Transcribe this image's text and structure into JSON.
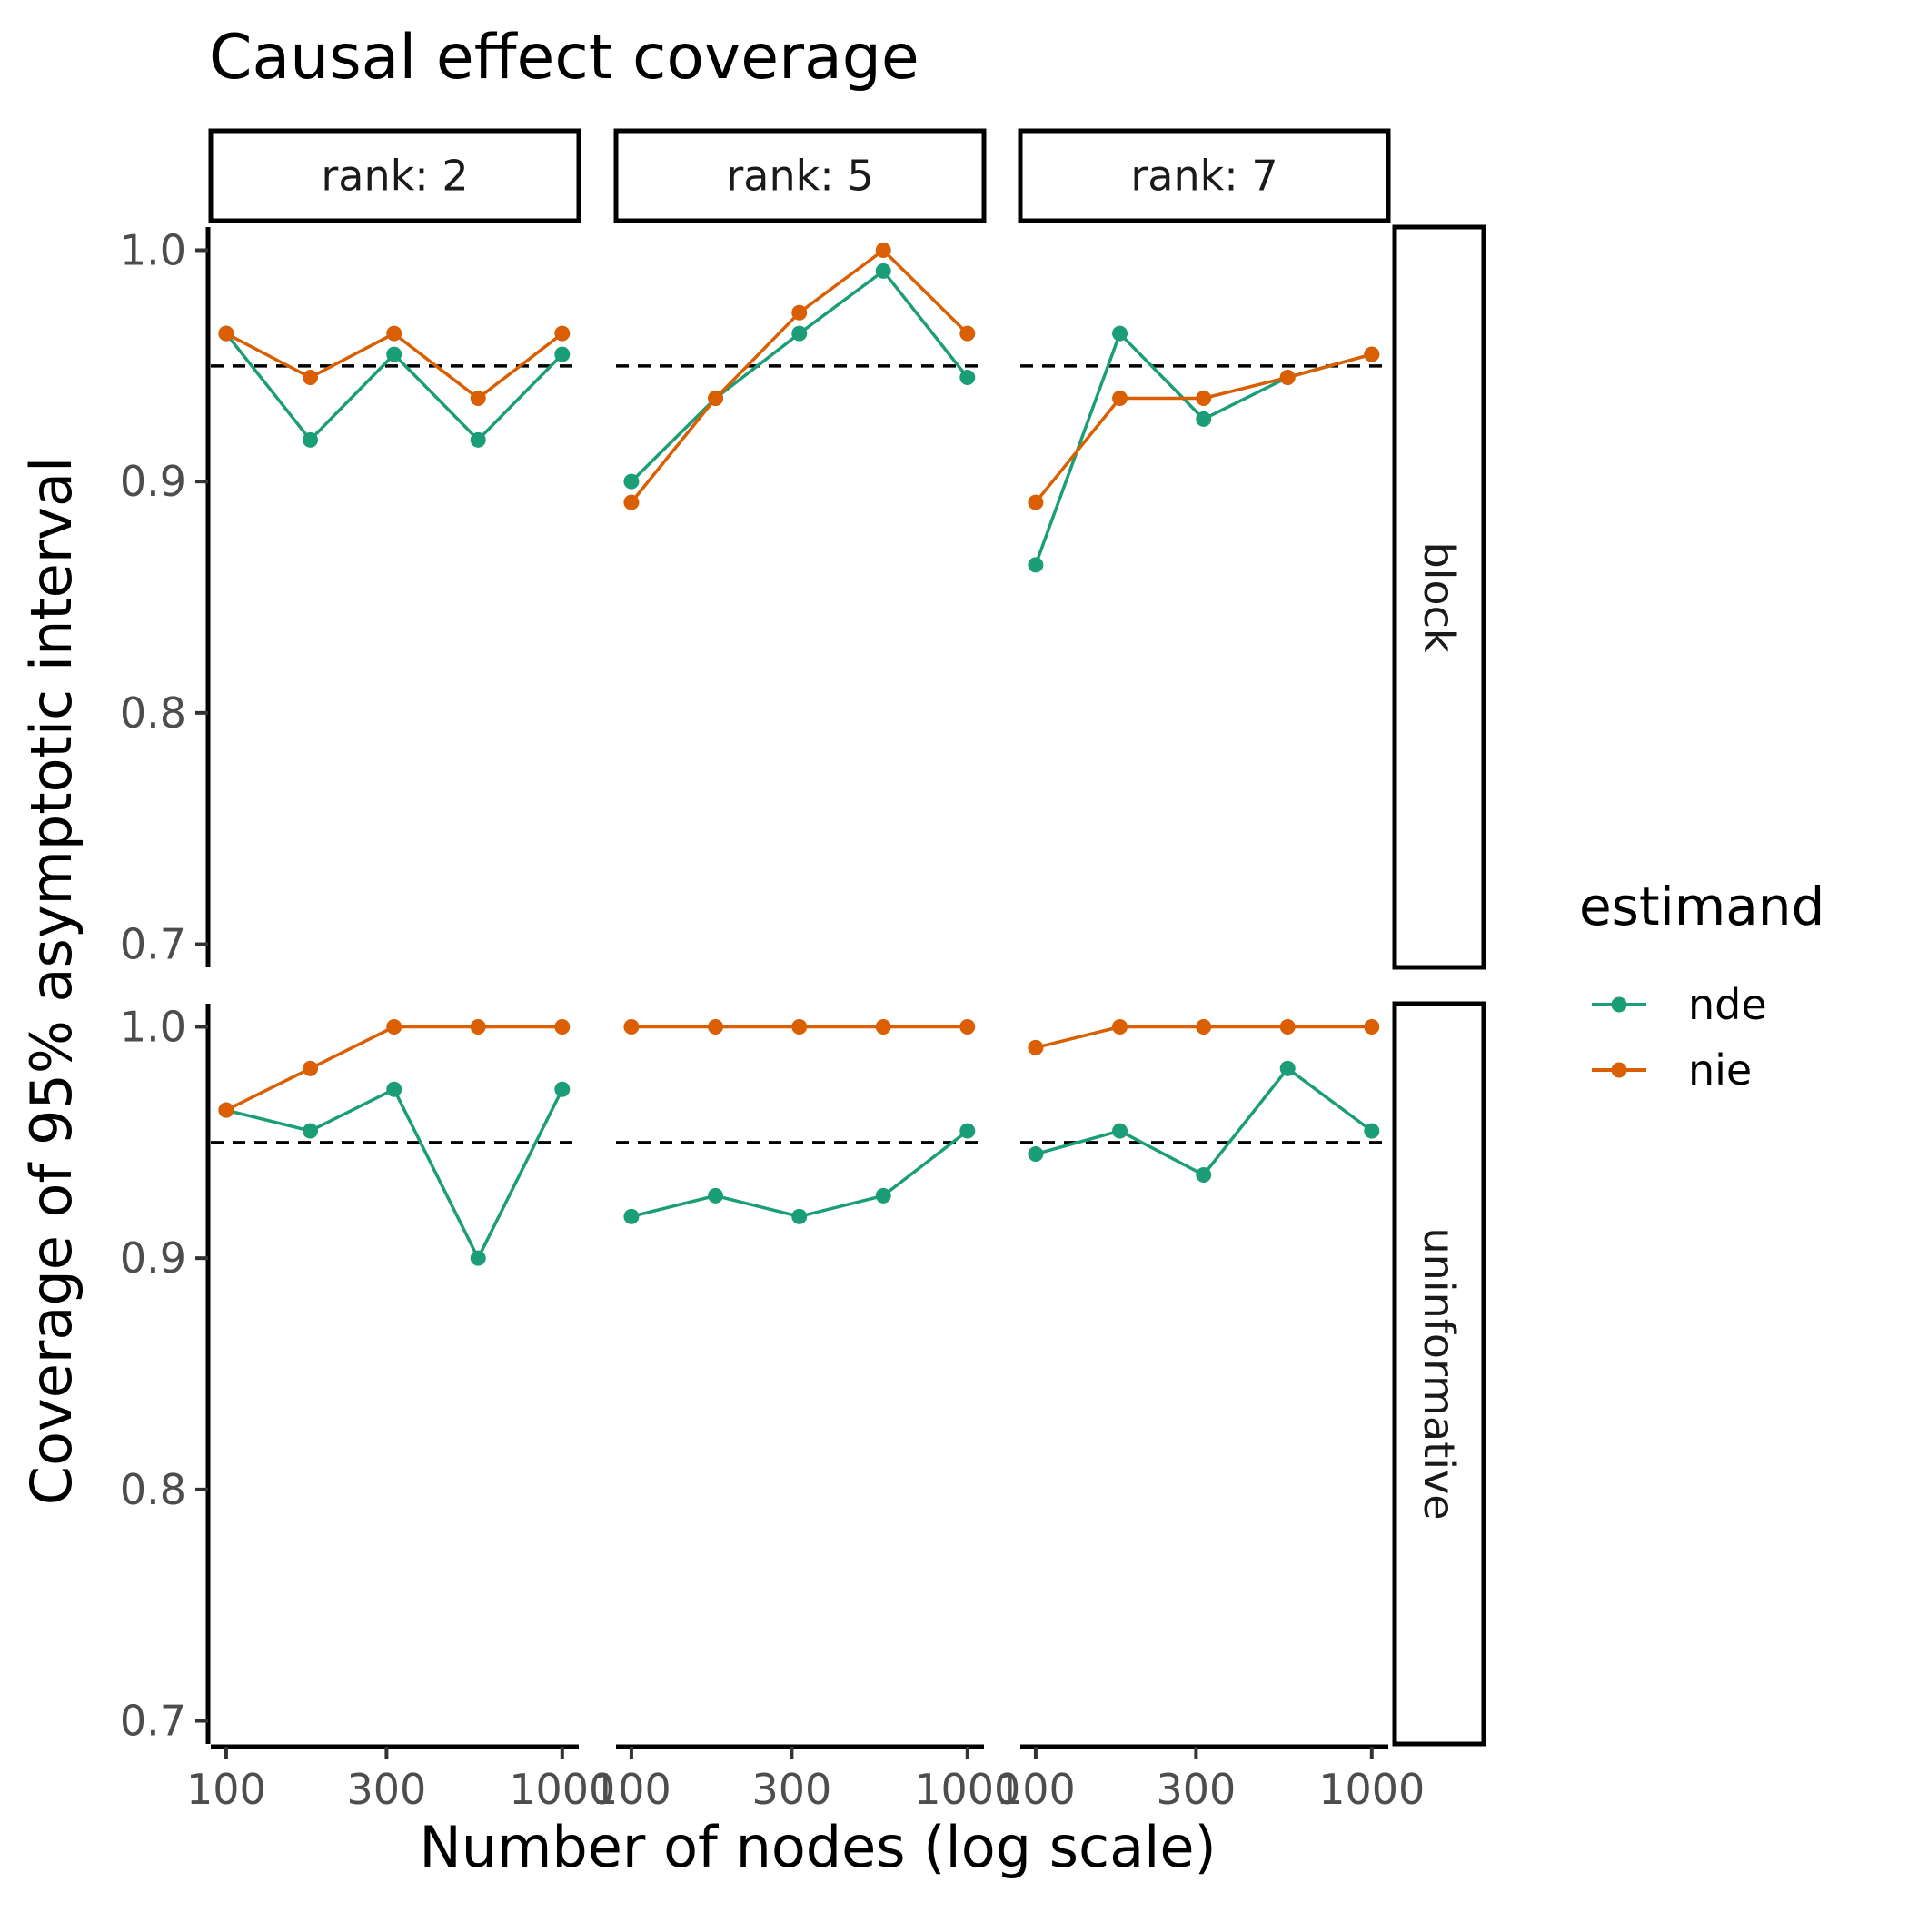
{
  "chart_data": {
    "type": "line",
    "title": "Causal effect coverage",
    "xlabel": "Number of nodes (log scale)",
    "ylabel": "Coverage of 95% asymptotic interval",
    "x_scale": "log",
    "x_ticks": [
      100,
      300,
      1000
    ],
    "x_tick_labels": [
      "100",
      "300",
      "1000"
    ],
    "y_ticks": [
      0.7,
      0.8,
      0.9,
      1.0
    ],
    "y_tick_labels": [
      "0.7",
      "0.8",
      "0.9",
      "1.0"
    ],
    "ylim": [
      0.69,
      1.01
    ],
    "x": [
      100,
      178,
      316,
      562,
      1000
    ],
    "reference_line": 0.95,
    "col_facet_labels": [
      "rank: 2",
      "rank: 5",
      "rank: 7"
    ],
    "row_facet_labels": [
      "block",
      "uninformative"
    ],
    "legend": {
      "title": "estimand",
      "entries": [
        {
          "name": "nde",
          "color": "#1b9e77"
        },
        {
          "name": "nie",
          "color": "#d95f02"
        }
      ]
    },
    "panels": [
      {
        "row": "block",
        "col": "rank: 2",
        "series": [
          {
            "name": "nde",
            "values": [
              0.964,
              0.918,
              0.955,
              0.918,
              0.955
            ]
          },
          {
            "name": "nie",
            "values": [
              0.964,
              0.945,
              0.964,
              0.936,
              0.964
            ]
          }
        ]
      },
      {
        "row": "block",
        "col": "rank: 5",
        "series": [
          {
            "name": "nde",
            "values": [
              0.9,
              0.936,
              0.964,
              0.991,
              0.945
            ]
          },
          {
            "name": "nie",
            "values": [
              0.891,
              0.936,
              0.973,
              1.0,
              0.964
            ]
          }
        ]
      },
      {
        "row": "block",
        "col": "rank: 7",
        "series": [
          {
            "name": "nde",
            "values": [
              0.864,
              0.964,
              0.927,
              0.945,
              0.955
            ]
          },
          {
            "name": "nie",
            "values": [
              0.891,
              0.936,
              0.936,
              0.945,
              0.955
            ]
          }
        ]
      },
      {
        "row": "uninformative",
        "col": "rank: 2",
        "series": [
          {
            "name": "nde",
            "values": [
              0.964,
              0.955,
              0.973,
              0.9,
              0.973
            ]
          },
          {
            "name": "nie",
            "values": [
              0.964,
              0.982,
              1.0,
              1.0,
              1.0
            ]
          }
        ]
      },
      {
        "row": "uninformative",
        "col": "rank: 5",
        "series": [
          {
            "name": "nde",
            "values": [
              0.918,
              0.927,
              0.918,
              0.927,
              0.955
            ]
          },
          {
            "name": "nie",
            "values": [
              1.0,
              1.0,
              1.0,
              1.0,
              1.0
            ]
          }
        ]
      },
      {
        "row": "uninformative",
        "col": "rank: 7",
        "series": [
          {
            "name": "nde",
            "values": [
              0.945,
              0.955,
              0.936,
              0.982,
              0.955
            ]
          },
          {
            "name": "nie",
            "values": [
              0.991,
              1.0,
              1.0,
              1.0,
              1.0
            ]
          }
        ]
      }
    ]
  }
}
